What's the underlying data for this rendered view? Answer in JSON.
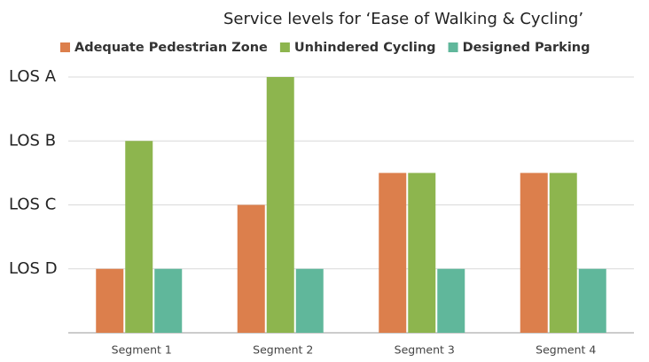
{
  "chart_data": {
    "type": "bar",
    "title": "Service levels for ‘Ease of Walking & Cycling’",
    "categories": [
      "Segment 1",
      "Segment 2",
      "Segment 3",
      "Segment 4"
    ],
    "series": [
      {
        "name": "Adequate Pedestrian Zone",
        "color": "#dc7f4c",
        "values": [
          1,
          2,
          2.5,
          2.5
        ]
      },
      {
        "name": "Unhindered Cycling",
        "color": "#8db54e",
        "values": [
          3,
          4,
          2.5,
          2.5
        ]
      },
      {
        "name": "Designed Parking",
        "color": "#60b79b",
        "values": [
          1,
          1,
          1,
          1
        ]
      }
    ],
    "ylim": [
      0,
      4
    ],
    "yticks": [
      {
        "value": 1,
        "label": "LOS D"
      },
      {
        "value": 2,
        "label": "LOS C"
      },
      {
        "value": 3,
        "label": "LOS B"
      },
      {
        "value": 4,
        "label": "LOS A"
      }
    ],
    "grid": true,
    "legend": "top"
  }
}
